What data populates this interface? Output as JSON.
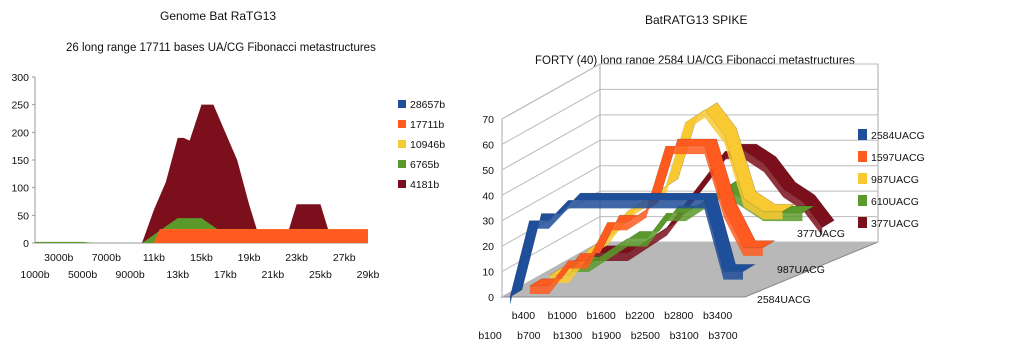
{
  "chart_data": [
    {
      "type": "area",
      "title": "Genome Bat RaTG13",
      "subtitle": "26 long range 17711 bases UA/CG Fibonacci metastructures",
      "xlabel": "",
      "ylabel": "",
      "ylim": [
        0,
        300
      ],
      "yticks": [
        0,
        50,
        100,
        150,
        200,
        250,
        300
      ],
      "xlim": [
        1000,
        29000
      ],
      "x_tick_labels_top": [
        "3000b",
        "7000b",
        "11kb",
        "15kb",
        "19kb",
        "23kb",
        "27kb"
      ],
      "x_tick_labels_bottom": [
        "1000b",
        "5000b",
        "9000b",
        "13kb",
        "17kb",
        "21kb",
        "25kb",
        "29kb"
      ],
      "legend_position": "right",
      "series": [
        {
          "name": "28657b",
          "color": "#1f4e9a",
          "x": [
            1000,
            29000
          ],
          "values": [
            0,
            0
          ]
        },
        {
          "name": "17711b",
          "color": "#ff5a1f",
          "x": [
            9000,
            11000,
            11500,
            28000,
            29000
          ],
          "values": [
            0,
            0,
            25,
            25,
            25
          ]
        },
        {
          "name": "10946b",
          "color": "#f9c932",
          "x": [
            9000,
            11000,
            11500,
            28000,
            29000
          ],
          "values": [
            0,
            0,
            25,
            25,
            8
          ]
        },
        {
          "name": "6765b",
          "color": "#5b9a2a",
          "x": [
            1000,
            5000,
            6000,
            9000,
            10000,
            11000,
            12000,
            13000,
            14000,
            15000,
            16000,
            17000,
            18000,
            19000,
            20000,
            21000,
            23000,
            25000,
            27000,
            29000
          ],
          "values": [
            2,
            2,
            0,
            0,
            0,
            15,
            30,
            45,
            45,
            45,
            30,
            15,
            10,
            5,
            0,
            0,
            0,
            0,
            0,
            0
          ]
        },
        {
          "name": "4181b",
          "color": "#7b0f1c",
          "x": [
            1000,
            9000,
            10000,
            11000,
            12000,
            13000,
            13500,
            14000,
            15000,
            16000,
            17000,
            18000,
            19000,
            20000,
            21000,
            22000,
            23000,
            24000,
            25000,
            26000,
            27000,
            28000,
            29000
          ],
          "values": [
            0,
            0,
            0,
            60,
            110,
            190,
            190,
            185,
            250,
            250,
            200,
            150,
            70,
            0,
            0,
            0,
            70,
            70,
            70,
            0,
            0,
            0,
            0
          ]
        }
      ]
    },
    {
      "type": "line",
      "title": "BatRATG13 SPIKE",
      "subtitle": "FORTY (40) long range 2584 UA/CG Fibonacci metastructures",
      "xlabel": "",
      "ylabel": "",
      "ylim": [
        0,
        70
      ],
      "yticks": [
        0,
        10,
        20,
        30,
        40,
        50,
        60,
        70
      ],
      "x_tick_labels_top": [
        "b400",
        "b1000",
        "b1600",
        "b2200",
        "b2800",
        "b3400"
      ],
      "x_tick_labels_bottom": [
        "b100",
        "b700",
        "b1300",
        "b1900",
        "b2500",
        "b3100",
        "b3700"
      ],
      "depth_labels": [
        "2584UACG",
        "987UACG",
        "377UACG"
      ],
      "legend_position": "right",
      "categories": [
        100,
        400,
        700,
        1000,
        1300,
        1600,
        1900,
        2200,
        2500,
        2800,
        3100,
        3400,
        3700
      ],
      "series": [
        {
          "name": "2584UACG",
          "color": "#1f4e9a",
          "values": [
            0,
            30,
            30,
            38,
            38,
            38,
            38,
            38,
            38,
            38,
            38,
            10,
            10
          ]
        },
        {
          "name": "1597UACG",
          "color": "#ff5a1f",
          "values": [
            0,
            0,
            10,
            10,
            25,
            25,
            30,
            55,
            55,
            55,
            30,
            15,
            15
          ]
        },
        {
          "name": "987UACG",
          "color": "#f9c932",
          "values": [
            0,
            0,
            10,
            15,
            25,
            30,
            35,
            60,
            65,
            55,
            30,
            25,
            25
          ]
        },
        {
          "name": "610UACG",
          "color": "#5b9a2a",
          "values": [
            0,
            0,
            5,
            10,
            10,
            20,
            20,
            25,
            30,
            25,
            20,
            20,
            20
          ]
        },
        {
          "name": "377UACG",
          "color": "#7b0f1c",
          "values": [
            0,
            0,
            0,
            5,
            10,
            20,
            30,
            40,
            40,
            35,
            25,
            20,
            10
          ]
        }
      ]
    }
  ]
}
